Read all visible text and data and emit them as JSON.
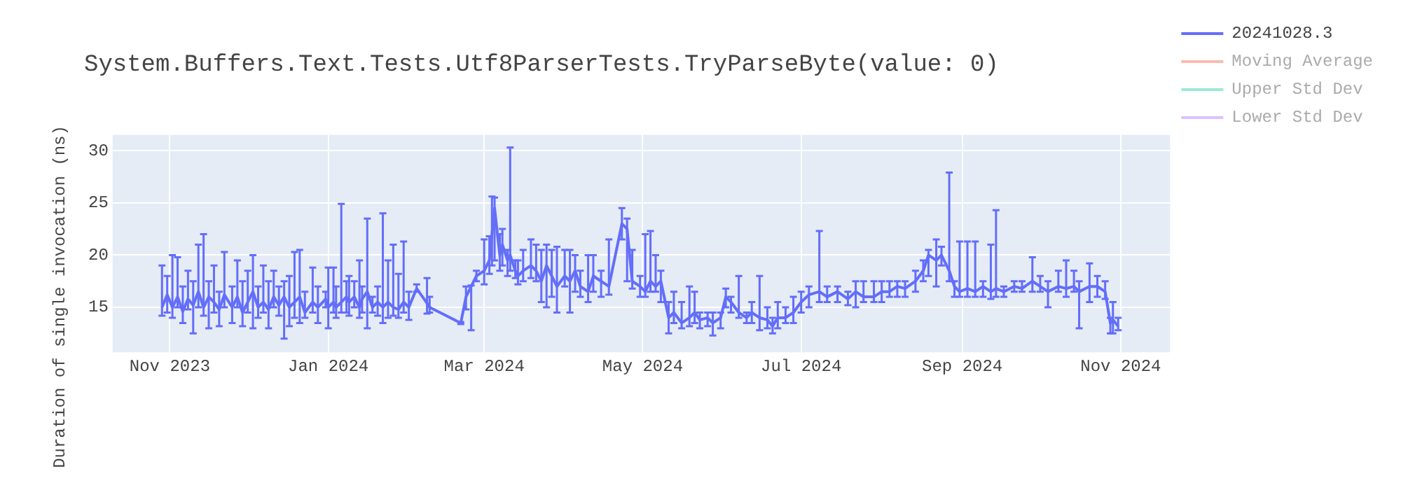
{
  "chart_data": {
    "type": "line",
    "title": "System.Buffers.Text.Tests.Utf8ParserTests.TryParseByte(value: 0)",
    "ylabel": "Duration of single invocation (ns)",
    "xlim": [
      "2023-10-10",
      "2024-11-20"
    ],
    "xticks": [
      {
        "value": "2023-11-01",
        "label": "Nov 2023"
      },
      {
        "value": "2024-01-01",
        "label": "Jan 2024"
      },
      {
        "value": "2024-03-01",
        "label": "Mar 2024"
      },
      {
        "value": "2024-05-01",
        "label": "May 2024"
      },
      {
        "value": "2024-07-01",
        "label": "Jul 2024"
      },
      {
        "value": "2024-09-01",
        "label": "Sep 2024"
      },
      {
        "value": "2024-11-01",
        "label": "Nov 2024"
      }
    ],
    "ylim": [
      10.7,
      31.5
    ],
    "yticks": [
      15,
      20,
      25,
      30
    ],
    "grid": true,
    "legend": "top right",
    "x": [
      "2023-10-29",
      "2023-10-31",
      "2023-11-02",
      "2023-11-04",
      "2023-11-06",
      "2023-11-08",
      "2023-11-10",
      "2023-11-12",
      "2023-11-14",
      "2023-11-16",
      "2023-11-18",
      "2023-11-20",
      "2023-11-22",
      "2023-11-25",
      "2023-11-27",
      "2023-11-29",
      "2023-12-01",
      "2023-12-03",
      "2023-12-05",
      "2023-12-07",
      "2023-12-09",
      "2023-12-11",
      "2023-12-13",
      "2023-12-15",
      "2023-12-17",
      "2023-12-19",
      "2023-12-21",
      "2023-12-23",
      "2023-12-26",
      "2023-12-28",
      "2023-12-31",
      "2024-01-01",
      "2024-01-03",
      "2024-01-04",
      "2024-01-06",
      "2024-01-08",
      "2024-01-09",
      "2024-01-11",
      "2024-01-13",
      "2024-01-14",
      "2024-01-16",
      "2024-01-18",
      "2024-01-20",
      "2024-01-22",
      "2024-01-24",
      "2024-01-26",
      "2024-01-28",
      "2024-01-30",
      "2024-02-01",
      "2024-02-04",
      "2024-02-08",
      "2024-02-09",
      "2024-02-21",
      "2024-02-23",
      "2024-02-25",
      "2024-02-27",
      "2024-03-01",
      "2024-03-03",
      "2024-03-04",
      "2024-03-05",
      "2024-03-07",
      "2024-03-08",
      "2024-03-10",
      "2024-03-11",
      "2024-03-13",
      "2024-03-14",
      "2024-03-16",
      "2024-03-19",
      "2024-03-21",
      "2024-03-23",
      "2024-03-25",
      "2024-03-27",
      "2024-03-29",
      "2024-04-01",
      "2024-04-03",
      "2024-04-05",
      "2024-04-07",
      "2024-04-10",
      "2024-04-12",
      "2024-04-15",
      "2024-04-18",
      "2024-04-23",
      "2024-04-25",
      "2024-04-27",
      "2024-04-30",
      "2024-05-02",
      "2024-05-04",
      "2024-05-06",
      "2024-05-08",
      "2024-05-11",
      "2024-05-13",
      "2024-05-16",
      "2024-05-19",
      "2024-05-21",
      "2024-05-23",
      "2024-05-26",
      "2024-05-28",
      "2024-05-31",
      "2024-06-02",
      "2024-06-04",
      "2024-06-07",
      "2024-06-10",
      "2024-06-12",
      "2024-06-15",
      "2024-06-18",
      "2024-06-20",
      "2024-06-22",
      "2024-06-25",
      "2024-06-28",
      "2024-07-01",
      "2024-07-04",
      "2024-07-08",
      "2024-07-11",
      "2024-07-15",
      "2024-07-19",
      "2024-07-22",
      "2024-07-25",
      "2024-07-29",
      "2024-08-01",
      "2024-08-04",
      "2024-08-07",
      "2024-08-10",
      "2024-08-14",
      "2024-08-17",
      "2024-08-19",
      "2024-08-22",
      "2024-08-24",
      "2024-08-27",
      "2024-08-29",
      "2024-08-31",
      "2024-09-03",
      "2024-09-06",
      "2024-09-09",
      "2024-09-12",
      "2024-09-14",
      "2024-09-17",
      "2024-09-21",
      "2024-09-24",
      "2024-09-28",
      "2024-10-01",
      "2024-10-04",
      "2024-10-08",
      "2024-10-11",
      "2024-10-14",
      "2024-10-16",
      "2024-10-20",
      "2024-10-23",
      "2024-10-26",
      "2024-10-28",
      "2024-10-29",
      "2024-10-31"
    ],
    "series": [
      {
        "name": "20241028.3",
        "color": "#636efa",
        "values": [
          15.0,
          16.2,
          15.0,
          16.0,
          14.6,
          15.8,
          15.2,
          16.5,
          15.0,
          16.0,
          15.5,
          14.8,
          16.2,
          15.0,
          16.0,
          14.5,
          15.5,
          16.5,
          15.0,
          15.5,
          14.8,
          16.0,
          15.2,
          16.0,
          15.0,
          15.5,
          16.0,
          14.5,
          15.5,
          15.0,
          15.8,
          15.0,
          15.5,
          15.0,
          15.5,
          16.0,
          15.5,
          16.0,
          15.0,
          15.8,
          16.5,
          15.0,
          15.5,
          15.0,
          15.5,
          15.0,
          14.8,
          15.5,
          15.0,
          16.8,
          15.4,
          15.0,
          13.5,
          16.0,
          17.0,
          18.0,
          18.5,
          19.5,
          22.0,
          24.5,
          20.0,
          21.0,
          19.5,
          20.0,
          18.5,
          18.0,
          18.5,
          19.0,
          18.5,
          17.5,
          19.0,
          18.0,
          17.0,
          18.0,
          17.5,
          18.5,
          17.0,
          16.5,
          18.0,
          17.5,
          17.0,
          23.0,
          22.5,
          17.5,
          17.0,
          16.5,
          17.5,
          17.0,
          17.5,
          14.0,
          14.5,
          13.5,
          14.0,
          14.5,
          13.8,
          14.0,
          13.5,
          14.0,
          16.0,
          15.5,
          14.5,
          14.0,
          14.5,
          14.0,
          13.8,
          13.2,
          14.0,
          14.0,
          14.5,
          15.5,
          16.2,
          16.5,
          16.0,
          16.5,
          15.8,
          16.5,
          16.0,
          16.0,
          16.5,
          16.5,
          17.0,
          16.8,
          17.5,
          18.5,
          20.0,
          19.5,
          20.0,
          18.5,
          17.0,
          16.5,
          16.8,
          16.5,
          17.0,
          16.5,
          16.8,
          16.5,
          17.0,
          16.8,
          17.5,
          17.0,
          16.5,
          17.0,
          16.8,
          17.0,
          16.5,
          17.0,
          17.0,
          16.5,
          13.5,
          13.8,
          13.2
        ],
        "errors": [
          [
            14.2,
            19.0
          ],
          [
            14.5,
            18.0
          ],
          [
            14.0,
            20.0
          ],
          [
            15.0,
            19.8
          ],
          [
            13.5,
            17.0
          ],
          [
            14.8,
            18.5
          ],
          [
            12.5,
            17.5
          ],
          [
            15.0,
            21.0
          ],
          [
            14.2,
            22.0
          ],
          [
            13.0,
            17.5
          ],
          [
            14.5,
            19.0
          ],
          [
            13.2,
            16.5
          ],
          [
            15.0,
            20.3
          ],
          [
            13.5,
            17.0
          ],
          [
            15.0,
            19.5
          ],
          [
            13.2,
            17.5
          ],
          [
            14.5,
            18.5
          ],
          [
            13.0,
            20.0
          ],
          [
            14.0,
            17.0
          ],
          [
            14.5,
            19.0
          ],
          [
            13.0,
            17.5
          ],
          [
            15.0,
            18.5
          ],
          [
            14.2,
            17.0
          ],
          [
            12.0,
            17.5
          ],
          [
            13.2,
            18.0
          ],
          [
            14.0,
            20.3
          ],
          [
            13.5,
            20.5
          ],
          [
            14.0,
            16.5
          ],
          [
            14.5,
            18.8
          ],
          [
            13.5,
            17.0
          ],
          [
            15.0,
            16.5
          ],
          [
            13.0,
            18.8
          ],
          [
            14.5,
            18.8
          ],
          [
            14.0,
            17.0
          ],
          [
            14.5,
            24.9
          ],
          [
            14.5,
            17.5
          ],
          [
            14.2,
            18.0
          ],
          [
            15.0,
            17.5
          ],
          [
            14.0,
            19.5
          ],
          [
            14.5,
            17.0
          ],
          [
            13.0,
            23.5
          ],
          [
            14.5,
            16.0
          ],
          [
            14.2,
            17.0
          ],
          [
            13.5,
            24.0
          ],
          [
            14.0,
            19.5
          ],
          [
            14.2,
            21.0
          ],
          [
            14.0,
            18.2
          ],
          [
            14.5,
            21.3
          ],
          [
            13.8,
            16.5
          ],
          [
            16.5,
            17.2
          ],
          [
            14.4,
            17.8
          ],
          [
            14.5,
            16.0
          ],
          [
            13.4,
            13.6
          ],
          [
            14.8,
            17.0
          ],
          [
            12.8,
            17.1
          ],
          [
            17.5,
            18.5
          ],
          [
            17.2,
            21.5
          ],
          [
            18.2,
            21.8
          ],
          [
            19.0,
            25.6
          ],
          [
            19.5,
            25.5
          ],
          [
            18.5,
            22.0
          ],
          [
            19.0,
            22.5
          ],
          [
            18.0,
            20.5
          ],
          [
            18.5,
            30.3
          ],
          [
            17.8,
            19.5
          ],
          [
            17.2,
            19.5
          ],
          [
            17.5,
            20.5
          ],
          [
            17.8,
            21.5
          ],
          [
            17.5,
            21.0
          ],
          [
            15.5,
            20.5
          ],
          [
            15.0,
            21.0
          ],
          [
            16.0,
            20.5
          ],
          [
            14.5,
            20.8
          ],
          [
            17.0,
            20.5
          ],
          [
            14.5,
            20.5
          ],
          [
            16.5,
            20.0
          ],
          [
            16.0,
            18.5
          ],
          [
            15.5,
            20.0
          ],
          [
            16.5,
            20.0
          ],
          [
            16.0,
            18.5
          ],
          [
            16.2,
            21.5
          ],
          [
            21.5,
            24.5
          ],
          [
            17.5,
            23.5
          ],
          [
            16.8,
            20.5
          ],
          [
            16.0,
            18.0
          ],
          [
            16.0,
            22.0
          ],
          [
            16.5,
            22.3
          ],
          [
            16.5,
            20.0
          ],
          [
            15.5,
            18.5
          ],
          [
            12.5,
            15.5
          ],
          [
            13.5,
            16.5
          ],
          [
            13.0,
            15.5
          ],
          [
            13.2,
            17.0
          ],
          [
            13.5,
            16.5
          ],
          [
            13.0,
            14.5
          ],
          [
            13.2,
            14.5
          ],
          [
            12.3,
            14.5
          ],
          [
            13.0,
            14.5
          ],
          [
            15.0,
            16.8
          ],
          [
            14.5,
            16.0
          ],
          [
            14.0,
            18.0
          ],
          [
            13.5,
            14.5
          ],
          [
            13.5,
            15.5
          ],
          [
            12.8,
            18.0
          ],
          [
            13.0,
            15.0
          ],
          [
            12.5,
            14.0
          ],
          [
            13.0,
            15.5
          ],
          [
            13.5,
            15.0
          ],
          [
            13.5,
            16.0
          ],
          [
            14.5,
            16.5
          ],
          [
            15.0,
            17.0
          ],
          [
            15.5,
            22.3
          ],
          [
            15.5,
            17.0
          ],
          [
            15.5,
            17.0
          ],
          [
            15.2,
            16.5
          ],
          [
            15.0,
            17.5
          ],
          [
            15.5,
            17.5
          ],
          [
            15.5,
            17.5
          ],
          [
            15.5,
            17.5
          ],
          [
            16.0,
            17.5
          ],
          [
            16.0,
            17.5
          ],
          [
            16.0,
            17.5
          ],
          [
            16.5,
            18.5
          ],
          [
            17.5,
            19.5
          ],
          [
            18.0,
            20.5
          ],
          [
            17.0,
            21.5
          ],
          [
            19.0,
            20.8
          ],
          [
            17.5,
            27.9
          ],
          [
            16.0,
            17.5
          ],
          [
            16.0,
            21.3
          ],
          [
            16.0,
            21.3
          ],
          [
            16.0,
            21.3
          ],
          [
            16.0,
            17.5
          ],
          [
            15.8,
            21.0
          ],
          [
            16.0,
            24.3
          ],
          [
            16.0,
            17.0
          ],
          [
            16.5,
            17.5
          ],
          [
            16.5,
            17.5
          ],
          [
            16.5,
            19.8
          ],
          [
            16.5,
            18.0
          ],
          [
            15.0,
            17.5
          ],
          [
            16.5,
            18.5
          ],
          [
            16.0,
            19.5
          ],
          [
            16.5,
            18.5
          ],
          [
            13.0,
            17.5
          ],
          [
            15.5,
            19.2
          ],
          [
            16.0,
            18.0
          ],
          [
            15.8,
            17.5
          ],
          [
            12.5,
            14.0
          ],
          [
            12.5,
            15.5
          ],
          [
            12.8,
            14.0
          ]
        ]
      },
      {
        "name": "Moving Average",
        "color": "#ef553b",
        "values": [
          null,
          null,
          null,
          null,
          null,
          null,
          null,
          null,
          null,
          null,
          null,
          null,
          null,
          null,
          null,
          null,
          null,
          null,
          null,
          null,
          null,
          null,
          null,
          null,
          null,
          null,
          null,
          null,
          null,
          null,
          null,
          null,
          null,
          null,
          null,
          null,
          null,
          null,
          null,
          null,
          null,
          null,
          null,
          null,
          null,
          null,
          null,
          null,
          null,
          null,
          null,
          null,
          null,
          null,
          null,
          null,
          null,
          null,
          null,
          null,
          null,
          null,
          null,
          null,
          null,
          null,
          null,
          null,
          null,
          null,
          null,
          null,
          null,
          null,
          null,
          null,
          null,
          null,
          null,
          null,
          null,
          null,
          null,
          null,
          null,
          null,
          null,
          null,
          null,
          null,
          null,
          null,
          null,
          null,
          null,
          null,
          null,
          null,
          null,
          null,
          null,
          null,
          null,
          null,
          null,
          null,
          null,
          null,
          null,
          null,
          null,
          null,
          null,
          null,
          null,
          null,
          null,
          null,
          null,
          null,
          null,
          null,
          null,
          null,
          null,
          null,
          null,
          null,
          null,
          null,
          null,
          null,
          null,
          null,
          null,
          null,
          null,
          null,
          null,
          null,
          null,
          null,
          null,
          null,
          null,
          null,
          null,
          null,
          null,
          null,
          null
        ]
      },
      {
        "name": "Upper Std Dev",
        "color": "#00cc96",
        "values": [
          null,
          null,
          null,
          null,
          null,
          null,
          null,
          null,
          null,
          null,
          null,
          null,
          null,
          null,
          null,
          null,
          null,
          null,
          null,
          null,
          null,
          null,
          null,
          null,
          null,
          null,
          null,
          null,
          null,
          null,
          null,
          null,
          null,
          null,
          null,
          null,
          null,
          null,
          null,
          null,
          null,
          null,
          null,
          null,
          null,
          null,
          null,
          null,
          null,
          null,
          null,
          null,
          null,
          null,
          null,
          null,
          null,
          null,
          null,
          null,
          null,
          null,
          null,
          null,
          null,
          null,
          null,
          null,
          null,
          null,
          null,
          null,
          null,
          null,
          null,
          null,
          null,
          null,
          null,
          null,
          null,
          null,
          null,
          null,
          null,
          null,
          null,
          null,
          null,
          null,
          null,
          null,
          null,
          null,
          null,
          null,
          null,
          null,
          null,
          null,
          null,
          null,
          null,
          null,
          null,
          null,
          null,
          null,
          null,
          null,
          null,
          null,
          null,
          null,
          null,
          null,
          null,
          null,
          null,
          null,
          null,
          null,
          null,
          null,
          null,
          null,
          null,
          null,
          null,
          null,
          null,
          null,
          null,
          null,
          null,
          null,
          null,
          null,
          null,
          null,
          null,
          null,
          null,
          null,
          null,
          null,
          null,
          null,
          null,
          null,
          null
        ]
      },
      {
        "name": "Lower Std Dev",
        "color": "#ab63fa",
        "values": [
          null,
          null,
          null,
          null,
          null,
          null,
          null,
          null,
          null,
          null,
          null,
          null,
          null,
          null,
          null,
          null,
          null,
          null,
          null,
          null,
          null,
          null,
          null,
          null,
          null,
          null,
          null,
          null,
          null,
          null,
          null,
          null,
          null,
          null,
          null,
          null,
          null,
          null,
          null,
          null,
          null,
          null,
          null,
          null,
          null,
          null,
          null,
          null,
          null,
          null,
          null,
          null,
          null,
          null,
          null,
          null,
          null,
          null,
          null,
          null,
          null,
          null,
          null,
          null,
          null,
          null,
          null,
          null,
          null,
          null,
          null,
          null,
          null,
          null,
          null,
          null,
          null,
          null,
          null,
          null,
          null,
          null,
          null,
          null,
          null,
          null,
          null,
          null,
          null,
          null,
          null,
          null,
          null,
          null,
          null,
          null,
          null,
          null,
          null,
          null,
          null,
          null,
          null,
          null,
          null,
          null,
          null,
          null,
          null,
          null,
          null,
          null,
          null,
          null,
          null,
          null,
          null,
          null,
          null,
          null,
          null,
          null,
          null,
          null,
          null,
          null,
          null,
          null,
          null,
          null,
          null,
          null,
          null,
          null,
          null,
          null,
          null,
          null,
          null,
          null,
          null,
          null,
          null,
          null,
          null,
          null,
          null,
          null,
          null,
          null,
          null
        ]
      }
    ]
  }
}
